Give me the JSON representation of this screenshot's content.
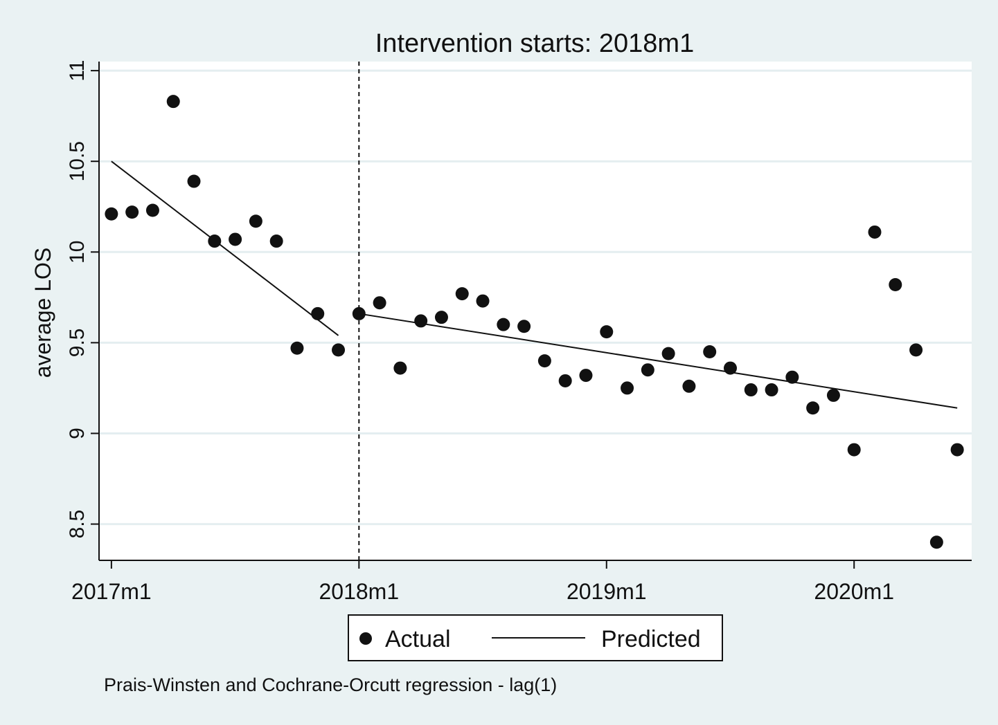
{
  "chart_data": {
    "type": "scatter",
    "title": "Intervention starts: 2018m1",
    "ylabel": "average LOS",
    "xlabel": "",
    "note": "Prais-Winsten and Cochrane-Orcutt regression - lag(1)",
    "ylim": [
      8.3,
      11.05
    ],
    "xlim": [
      -0.6,
      41.7
    ],
    "yticks": [
      8.5,
      9,
      9.5,
      10,
      10.5,
      11
    ],
    "ytick_labels": [
      "8.5",
      "9",
      "9.5",
      "10",
      "10.5",
      "11"
    ],
    "xticks": [
      0,
      12,
      24,
      36
    ],
    "xtick_labels": [
      "2017m1",
      "2018m1",
      "2019m1",
      "2020m1"
    ],
    "intervention_x": 12,
    "legend": {
      "position": "bottom",
      "actual_label": "Actual",
      "predicted_label": "Predicted"
    },
    "series": [
      {
        "name": "Actual",
        "style": "markers",
        "x": [
          0,
          1,
          2,
          3,
          4,
          5,
          6,
          7,
          8,
          9,
          10,
          11,
          12,
          13,
          14,
          15,
          16,
          17,
          18,
          19,
          20,
          21,
          22,
          23,
          24,
          25,
          26,
          27,
          28,
          29,
          30,
          31,
          32,
          33,
          34,
          35,
          36,
          37,
          38,
          39,
          40,
          41
        ],
        "values": [
          10.21,
          10.22,
          10.23,
          10.83,
          10.39,
          10.06,
          10.07,
          10.17,
          10.06,
          9.47,
          9.66,
          9.46,
          9.66,
          9.72,
          9.36,
          9.62,
          9.64,
          9.77,
          9.73,
          9.6,
          9.59,
          9.4,
          9.29,
          9.32,
          9.56,
          9.25,
          9.35,
          9.44,
          9.26,
          9.45,
          9.36,
          9.24,
          9.24,
          9.31,
          9.14,
          9.21,
          8.91,
          10.11,
          9.82,
          9.46,
          8.4,
          8.91
        ]
      },
      {
        "name": "Predicted",
        "style": "line",
        "segments": [
          {
            "x": [
              0,
              11
            ],
            "values": [
              10.5,
              9.54
            ]
          },
          {
            "x": [
              12,
              41
            ],
            "values": [
              9.66,
              9.14
            ]
          }
        ]
      }
    ]
  }
}
